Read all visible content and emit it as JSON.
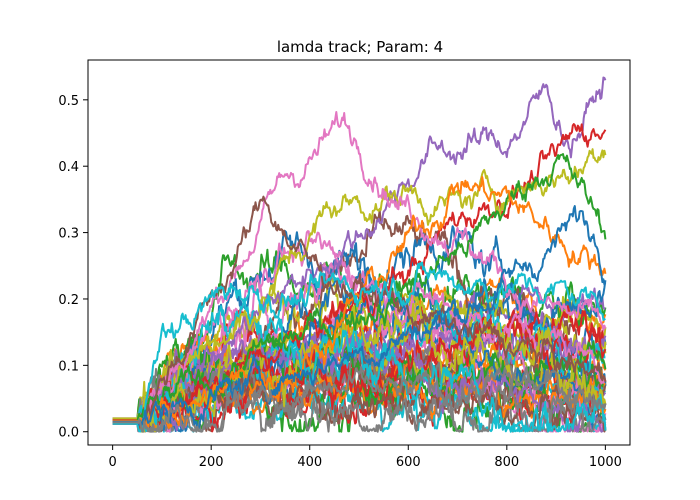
{
  "chart_data": {
    "type": "line",
    "title": "lamda track; Param: 4",
    "xlabel": "",
    "ylabel": "",
    "xlim": [
      -50,
      1050
    ],
    "ylim": [
      -0.02,
      0.56
    ],
    "xticks": [
      0,
      200,
      400,
      600,
      800,
      1000
    ],
    "yticks": [
      0.0,
      0.1,
      0.2,
      0.3,
      0.4,
      0.5
    ],
    "xtick_labels": [
      "0",
      "200",
      "400",
      "600",
      "800",
      "1000"
    ],
    "ytick_labels": [
      "0.0",
      "0.1",
      "0.2",
      "0.3",
      "0.4",
      "0.5"
    ],
    "grid": false,
    "legend": "none",
    "n_steps": 1000,
    "initial_value_range": [
      0.012,
      0.02
    ],
    "flat_until_step": 50,
    "colors": [
      "#1f77b4",
      "#ff7f0e",
      "#2ca02c",
      "#d62728",
      "#9467bd",
      "#8c564b",
      "#e377c2",
      "#7f7f7f",
      "#bcbd22",
      "#17becf"
    ],
    "series": [
      {
        "color": "#9467bd",
        "values": [
          [
            0,
            0.02
          ],
          [
            50,
            0.02
          ],
          [
            150,
            0.08
          ],
          [
            300,
            0.18
          ],
          [
            500,
            0.3
          ],
          [
            640,
            0.42
          ],
          [
            800,
            0.44
          ],
          [
            880,
            0.51
          ],
          [
            930,
            0.44
          ],
          [
            1000,
            0.53
          ]
        ]
      },
      {
        "color": "#d62728",
        "values": [
          [
            0,
            0.018
          ],
          [
            50,
            0.018
          ],
          [
            200,
            0.06
          ],
          [
            400,
            0.15
          ],
          [
            600,
            0.24
          ],
          [
            700,
            0.32
          ],
          [
            820,
            0.37
          ],
          [
            900,
            0.4
          ],
          [
            950,
            0.46
          ],
          [
            1000,
            0.46
          ]
        ]
      },
      {
        "color": "#bcbd22",
        "values": [
          [
            0,
            0.02
          ],
          [
            50,
            0.02
          ],
          [
            150,
            0.1
          ],
          [
            300,
            0.2
          ],
          [
            450,
            0.34
          ],
          [
            600,
            0.36
          ],
          [
            700,
            0.34
          ],
          [
            850,
            0.38
          ],
          [
            950,
            0.4
          ],
          [
            1000,
            0.45
          ]
        ]
      },
      {
        "color": "#e377c2",
        "values": [
          [
            0,
            0.015
          ],
          [
            50,
            0.015
          ],
          [
            150,
            0.12
          ],
          [
            250,
            0.25
          ],
          [
            350,
            0.38
          ],
          [
            470,
            0.46
          ],
          [
            530,
            0.42
          ],
          [
            580,
            0.35
          ],
          [
            700,
            0.3
          ],
          [
            850,
            0.2
          ],
          [
            1000,
            0.15
          ]
        ]
      },
      {
        "color": "#2ca02c",
        "values": [
          [
            0,
            0.014
          ],
          [
            50,
            0.014
          ],
          [
            200,
            0.08
          ],
          [
            400,
            0.15
          ],
          [
            600,
            0.22
          ],
          [
            750,
            0.3
          ],
          [
            900,
            0.42
          ],
          [
            1000,
            0.3
          ]
        ]
      },
      {
        "color": "#ff7f0e",
        "values": [
          [
            0,
            0.016
          ],
          [
            50,
            0.016
          ],
          [
            200,
            0.05
          ],
          [
            400,
            0.12
          ],
          [
            600,
            0.28
          ],
          [
            700,
            0.38
          ],
          [
            800,
            0.35
          ],
          [
            900,
            0.3
          ],
          [
            1000,
            0.25
          ]
        ]
      },
      {
        "color": "#8c564b",
        "values": [
          [
            0,
            0.013
          ],
          [
            50,
            0.013
          ],
          [
            150,
            0.14
          ],
          [
            250,
            0.26
          ],
          [
            310,
            0.35
          ],
          [
            400,
            0.25
          ],
          [
            550,
            0.2
          ],
          [
            700,
            0.15
          ],
          [
            850,
            0.12
          ],
          [
            1000,
            0.08
          ]
        ]
      },
      {
        "color": "#17becf",
        "values": [
          [
            0,
            0.012
          ],
          [
            50,
            0.012
          ],
          [
            100,
            0.14
          ],
          [
            250,
            0.22
          ],
          [
            400,
            0.2
          ],
          [
            600,
            0.24
          ],
          [
            800,
            0.22
          ],
          [
            1000,
            0.2
          ]
        ]
      },
      {
        "color": "#1f77b4",
        "values": [
          [
            0,
            0.015
          ],
          [
            50,
            0.015
          ],
          [
            200,
            0.05
          ],
          [
            400,
            0.1
          ],
          [
            600,
            0.15
          ],
          [
            800,
            0.22
          ],
          [
            950,
            0.32
          ],
          [
            1000,
            0.28
          ]
        ]
      },
      {
        "color": "#7f7f7f",
        "values": [
          [
            0,
            0.014
          ],
          [
            50,
            0.014
          ],
          [
            200,
            0.04
          ],
          [
            400,
            0.06
          ],
          [
            600,
            0.05
          ],
          [
            800,
            0.07
          ],
          [
            1000,
            0.06
          ]
        ]
      }
    ]
  }
}
